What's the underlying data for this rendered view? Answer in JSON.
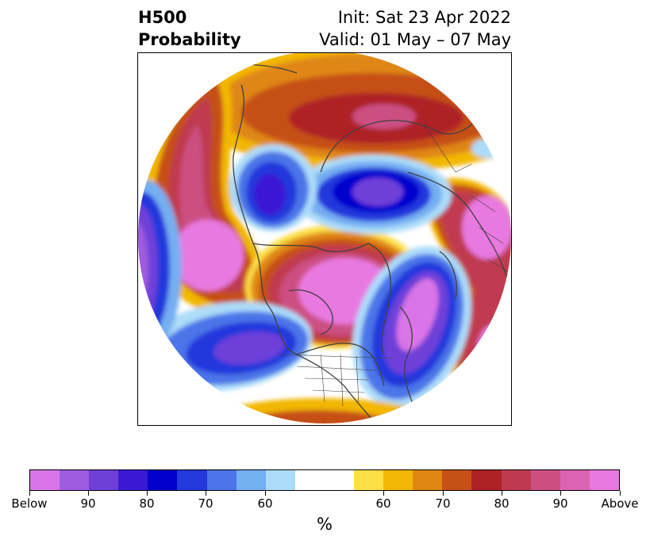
{
  "title": {
    "left_line1": "H500",
    "left_line2": "Probability",
    "right_line1": "Init: Sat 23 Apr 2022",
    "right_line2": "Valid: 01 May – 07 May"
  },
  "map": {
    "projection": "north-polar-stereographic",
    "features": [
      "coastlines",
      "country-borders",
      "us-state-borders"
    ],
    "anomalies": [
      {
        "name": "northern-siberia-high",
        "sign": "above"
      },
      {
        "name": "eastern-siberia-low",
        "sign": "below"
      },
      {
        "name": "western-siberia-low",
        "sign": "below"
      },
      {
        "name": "europe-high",
        "sign": "above"
      },
      {
        "name": "pacific-high",
        "sign": "above"
      },
      {
        "name": "arctic-canada-high",
        "sign": "above"
      },
      {
        "name": "north-atlantic-low",
        "sign": "below"
      },
      {
        "name": "gulf-of-alaska-low",
        "sign": "below"
      },
      {
        "name": "dateline-low",
        "sign": "below"
      }
    ]
  },
  "colorbar": {
    "unit": "%",
    "colors": [
      "#d974e6",
      "#9f5ce0",
      "#6e3fd9",
      "#3b18d4",
      "#0000cd",
      "#2339dc",
      "#4b74e8",
      "#74aff1",
      "#acdcf9",
      "#ffffff",
      "#ffffff",
      "#fde047",
      "#f2b705",
      "#df8712",
      "#c65017",
      "#ae2125",
      "#c03a4f",
      "#cc4f82",
      "#dc62b2",
      "#e879e0"
    ],
    "tick_labels": [
      "Below",
      "90",
      "80",
      "70",
      "60",
      "60",
      "70",
      "80",
      "90",
      "Above"
    ]
  }
}
